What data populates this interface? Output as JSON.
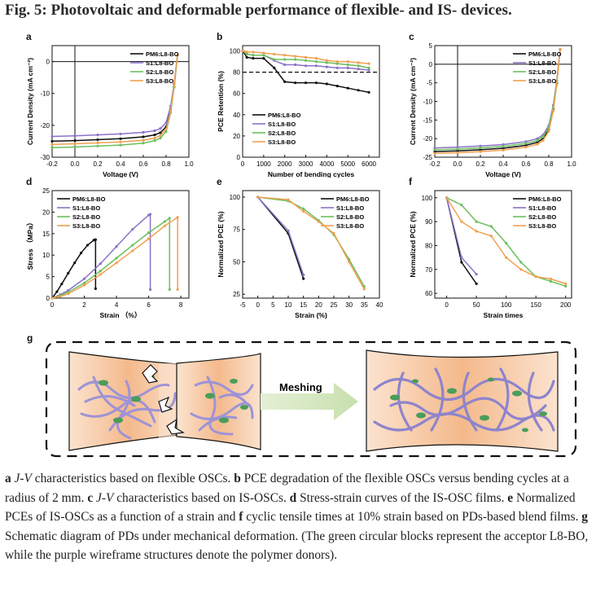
{
  "figure": {
    "title": "Fig. 5: Photovoltaic and deformable performance of flexible- and IS- devices.",
    "caption": [
      {
        "b": "a",
        "i": " J-V",
        "t": " characteristics based on flexible OSCs. "
      },
      {
        "b": "b",
        "t": " PCE degradation of the flexible OSCs versus bending cycles at a radius of 2 mm. "
      },
      {
        "b": "c",
        "i": " J-V",
        "t": " characteristics based on IS-OSCs. "
      },
      {
        "b": "d",
        "t": " Stress-strain curves of the IS-OSC films. "
      },
      {
        "b": "e",
        "t": " Normalized PCEs of IS-OSCs as a function of a strain and "
      },
      {
        "b": "f",
        "t": " cyclic tensile times at 10% strain based on PDs-based blend films. "
      },
      {
        "b": "g",
        "t": " Schematic diagram of PDs under mechanical deformation. (The green circular blocks represent the acceptor L8-BO, while the purple wireframe structures denote the polymer donors)."
      }
    ]
  },
  "colors": {
    "PM6": "#111111",
    "S1": "#8a73c9",
    "S2": "#6cbf5e",
    "S3": "#f0a050"
  },
  "chart_data": [
    {
      "panel": "a",
      "type": "line",
      "xlabel": "Voltage (V)",
      "ylabel": "Current Density (mA cm⁻²)",
      "xlim": [
        -0.2,
        1.0
      ],
      "ylim": [
        -30,
        5
      ],
      "xticks": [
        "-0.2",
        "0.0",
        "0.2",
        "0.4",
        "0.6",
        "0.8",
        "1.0"
      ],
      "yticks": [
        "-30",
        "-20",
        "-10",
        "0"
      ],
      "series": [
        {
          "name": "PM6:L8-BO",
          "x": [
            -0.2,
            0.0,
            0.2,
            0.4,
            0.6,
            0.7,
            0.75,
            0.8,
            0.84,
            0.87,
            0.9
          ],
          "y": [
            -25,
            -24.8,
            -24.5,
            -24.2,
            -23.6,
            -23,
            -22.3,
            -20.5,
            -15,
            -8,
            2
          ]
        },
        {
          "name": "S1:L8-BO",
          "x": [
            -0.2,
            0.0,
            0.2,
            0.4,
            0.6,
            0.7,
            0.75,
            0.8,
            0.84,
            0.87,
            0.9
          ],
          "y": [
            -23.5,
            -23.3,
            -23,
            -22.7,
            -22.2,
            -21.7,
            -21,
            -19.2,
            -14,
            -7,
            2
          ]
        },
        {
          "name": "S2:L8-BO",
          "x": [
            -0.2,
            0.0,
            0.2,
            0.4,
            0.6,
            0.7,
            0.75,
            0.8,
            0.84,
            0.87,
            0.9
          ],
          "y": [
            -27,
            -26.8,
            -26.5,
            -26.2,
            -25.6,
            -24.8,
            -24,
            -22,
            -16,
            -8,
            2
          ]
        },
        {
          "name": "S3:L8-BO",
          "x": [
            -0.2,
            0.0,
            0.2,
            0.4,
            0.6,
            0.7,
            0.75,
            0.8,
            0.84,
            0.87,
            0.9
          ],
          "y": [
            -26,
            -25.8,
            -25.5,
            -25.2,
            -24.7,
            -24,
            -23.2,
            -21.2,
            -15.5,
            -7.5,
            2
          ]
        }
      ]
    },
    {
      "panel": "b",
      "type": "line",
      "xlabel": "Number of bending cycles",
      "ylabel": "PCE Retention (%)",
      "xlim": [
        0,
        6500
      ],
      "ylim": [
        0,
        105
      ],
      "xticks": [
        "0",
        "1000",
        "2000",
        "3000",
        "4000",
        "5000",
        "6000"
      ],
      "yticks": [
        "0",
        "20",
        "40",
        "60",
        "80",
        "100"
      ],
      "reference_line": 80,
      "series": [
        {
          "name": "PM6:L8-BO",
          "x": [
            0,
            200,
            500,
            1000,
            1500,
            2000,
            2500,
            3000,
            3500,
            4000,
            4500,
            5000,
            5500,
            6000
          ],
          "y": [
            100,
            94,
            93,
            93,
            84,
            71,
            70,
            70,
            70,
            69,
            67,
            65,
            63,
            61
          ]
        },
        {
          "name": "S1:L8-BO",
          "x": [
            0,
            200,
            500,
            1000,
            1500,
            2000,
            2500,
            3000,
            3500,
            4000,
            4500,
            5000,
            5500,
            6000
          ],
          "y": [
            100,
            97,
            96,
            96,
            91,
            87,
            87,
            86,
            86,
            85,
            84,
            84,
            83,
            82
          ]
        },
        {
          "name": "S2:L8-BO",
          "x": [
            0,
            200,
            500,
            1000,
            1500,
            2000,
            2500,
            3000,
            3500,
            4000,
            4500,
            5000,
            5500,
            6000
          ],
          "y": [
            100,
            97,
            96,
            96,
            92,
            92,
            92,
            91,
            90,
            89,
            88,
            87,
            86,
            84
          ]
        },
        {
          "name": "S3:L8-BO",
          "x": [
            0,
            200,
            500,
            1000,
            1500,
            2000,
            2500,
            3000,
            3500,
            4000,
            4500,
            5000,
            5500,
            6000
          ],
          "y": [
            100,
            99,
            99,
            98,
            97,
            96,
            95,
            94,
            93,
            91,
            90,
            90,
            89,
            88
          ]
        }
      ]
    },
    {
      "panel": "c",
      "type": "line",
      "xlabel": "Voltage (V)",
      "ylabel": "Current Density (mA cm⁻²)",
      "xlim": [
        -0.2,
        1.0
      ],
      "ylim": [
        -25,
        5
      ],
      "xticks": [
        "-0.2",
        "0.0",
        "0.2",
        "0.4",
        "0.6",
        "0.8",
        "1.0"
      ],
      "yticks": [
        "-25",
        "-20",
        "-15",
        "-10",
        "-5",
        "0",
        "5"
      ],
      "series": [
        {
          "name": "PM6:L8-BO",
          "x": [
            -0.2,
            0.0,
            0.2,
            0.4,
            0.6,
            0.7,
            0.75,
            0.8,
            0.84,
            0.87,
            0.9
          ],
          "y": [
            -23.5,
            -23.3,
            -23,
            -22.6,
            -21.8,
            -21,
            -20,
            -17.5,
            -12,
            -5,
            4
          ]
        },
        {
          "name": "S1:L8-BO",
          "x": [
            -0.2,
            0.0,
            0.2,
            0.4,
            0.6,
            0.7,
            0.75,
            0.8,
            0.84,
            0.87,
            0.9
          ],
          "y": [
            -22.5,
            -22.3,
            -22,
            -21.6,
            -20.8,
            -20,
            -19,
            -16.5,
            -11,
            -4.5,
            4
          ]
        },
        {
          "name": "S2:L8-BO",
          "x": [
            -0.2,
            0.0,
            0.2,
            0.4,
            0.6,
            0.7,
            0.75,
            0.8,
            0.84,
            0.87,
            0.9
          ],
          "y": [
            -23,
            -22.8,
            -22.5,
            -22.1,
            -21.3,
            -20.5,
            -19.5,
            -17,
            -11.5,
            -4.8,
            4
          ]
        },
        {
          "name": "S3:L8-BO",
          "x": [
            -0.2,
            0.0,
            0.2,
            0.4,
            0.6,
            0.7,
            0.75,
            0.8,
            0.84,
            0.87,
            0.9
          ],
          "y": [
            -24,
            -23.8,
            -23.5,
            -23.1,
            -22.3,
            -21.5,
            -20.5,
            -18,
            -12.5,
            -5.5,
            4
          ]
        }
      ]
    },
    {
      "panel": "d",
      "type": "line",
      "xlabel": "Strain （%）",
      "ylabel": "Stress （MPa）",
      "xlim": [
        0,
        8.5
      ],
      "ylim": [
        0,
        25
      ],
      "xticks": [
        "0",
        "2",
        "4",
        "6",
        "8"
      ],
      "yticks": [
        "0",
        "5",
        "10",
        "15",
        "20",
        "25"
      ],
      "series": [
        {
          "name": "PM6:L8-BO",
          "x": [
            0,
            0.3,
            0.6,
            1,
            1.4,
            1.8,
            2.2,
            2.6,
            2.7,
            2.7
          ],
          "y": [
            0,
            1.5,
            3.3,
            5.8,
            8.2,
            10.5,
            12.3,
            13.5,
            13.6,
            2.2
          ]
        },
        {
          "name": "S1:L8-BO",
          "x": [
            0,
            0.5,
            1,
            2,
            3,
            4,
            5,
            6,
            6.1,
            6.1
          ],
          "y": [
            0,
            0.8,
            1.8,
            4.5,
            8,
            12,
            16,
            19.3,
            19.5,
            2
          ]
        },
        {
          "name": "S2:L8-BO",
          "x": [
            0,
            0.5,
            1,
            2,
            3,
            4,
            5,
            6,
            7,
            7.3,
            7.3
          ],
          "y": [
            0,
            0.6,
            1.4,
            3.5,
            6.3,
            9.3,
            12.3,
            15.2,
            17.8,
            18.6,
            2
          ]
        },
        {
          "name": "S3:L8-BO",
          "x": [
            0,
            0.5,
            1,
            2,
            3,
            4,
            5,
            6,
            7,
            7.8,
            7.8
          ],
          "y": [
            0,
            0.4,
            1,
            3,
            5.5,
            8.2,
            11,
            13.8,
            16.8,
            18.8,
            2
          ]
        }
      ]
    },
    {
      "panel": "e",
      "type": "line",
      "xlabel": "Strain (%)",
      "ylabel": "Normalized PCE (%)",
      "xlim": [
        -5,
        40
      ],
      "ylim": [
        22,
        105
      ],
      "xticks": [
        "-5",
        "0",
        "5",
        "10",
        "15",
        "20",
        "25",
        "30",
        "35",
        "40"
      ],
      "yticks": [
        "25",
        "50",
        "75",
        "100"
      ],
      "series": [
        {
          "name": "PM6:L8-BO",
          "x": [
            0,
            10,
            15
          ],
          "y": [
            100,
            72,
            37
          ]
        },
        {
          "name": "S1:L8-BO",
          "x": [
            0,
            10,
            15
          ],
          "y": [
            100,
            74,
            40
          ]
        },
        {
          "name": "S2:L8-BO",
          "x": [
            0,
            10,
            15,
            20,
            25,
            30,
            35
          ],
          "y": [
            100,
            97,
            91,
            82,
            71,
            52,
            31
          ]
        },
        {
          "name": "S3:L8-BO",
          "x": [
            0,
            10,
            15,
            20,
            25,
            30,
            35
          ],
          "y": [
            100,
            98,
            89,
            81,
            72,
            50,
            29
          ]
        }
      ]
    },
    {
      "panel": "f",
      "type": "line",
      "xlabel": "Strain times",
      "ylabel": "Normalized PCE (%)",
      "xlim": [
        -20,
        210
      ],
      "ylim": [
        58,
        103
      ],
      "xticks": [
        "0",
        "50",
        "100",
        "150",
        "200"
      ],
      "yticks": [
        "60",
        "70",
        "80",
        "90",
        "100"
      ],
      "series": [
        {
          "name": "PM6:L8-BO",
          "x": [
            0,
            25,
            50
          ],
          "y": [
            100,
            73,
            64
          ]
        },
        {
          "name": "S1:L8-BO",
          "x": [
            0,
            25,
            50
          ],
          "y": [
            100,
            75,
            68
          ]
        },
        {
          "name": "S2:L8-BO",
          "x": [
            0,
            25,
            50,
            75,
            100,
            125,
            150,
            175,
            200
          ],
          "y": [
            100,
            97,
            90,
            88,
            81,
            73,
            67,
            65,
            63
          ]
        },
        {
          "name": "S3:L8-BO",
          "x": [
            0,
            25,
            50,
            75,
            100,
            125,
            150,
            175,
            200
          ],
          "y": [
            100,
            90,
            86,
            84,
            75,
            70,
            67,
            66,
            64
          ]
        }
      ]
    }
  ],
  "schematic": {
    "label": "g",
    "arrow_text": "Meshing"
  }
}
